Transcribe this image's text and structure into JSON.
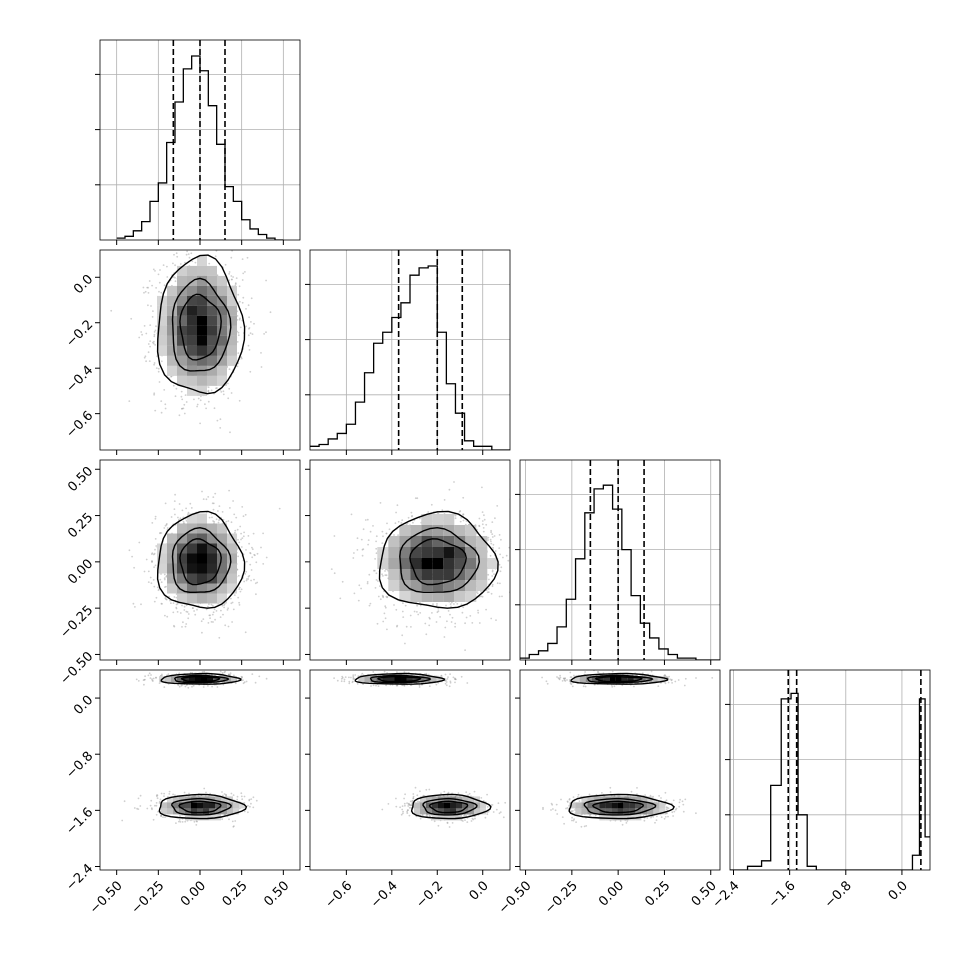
{
  "chart_data": {
    "type": "corner",
    "parameters": [
      {
        "range": [
          -0.6,
          0.6
        ],
        "ticks": [
          -0.5,
          -0.25,
          0.0,
          0.25,
          0.5
        ],
        "tick_labels": [
          "−0.50",
          "−0.25",
          "0.00",
          "0.25",
          "0.50"
        ],
        "quantiles": [
          -0.16,
          0.0,
          0.15
        ],
        "hist_edges_start": -0.5,
        "hist_bin_width": 0.05,
        "hist_heights": [
          0.01,
          0.02,
          0.05,
          0.1,
          0.21,
          0.31,
          0.53,
          0.75,
          0.93,
          1.0,
          0.92,
          0.73,
          0.52,
          0.29,
          0.21,
          0.11,
          0.06,
          0.03,
          0.01,
          0.0
        ]
      },
      {
        "range": [
          -0.76,
          0.12
        ],
        "ticks": [
          -0.6,
          -0.4,
          -0.2,
          0.0
        ],
        "tick_labels": [
          "−0.6",
          "−0.4",
          "−0.2",
          "0.0"
        ],
        "quantiles": [
          -0.37,
          -0.2,
          -0.09
        ],
        "hist_edges_start": -0.76,
        "hist_bin_width": 0.04,
        "hist_heights": [
          0.02,
          0.03,
          0.06,
          0.09,
          0.14,
          0.26,
          0.42,
          0.58,
          0.64,
          0.72,
          0.8,
          0.95,
          0.99,
          1.0,
          0.64,
          0.36,
          0.2,
          0.05,
          0.02,
          0.02,
          0.0,
          0.0
        ]
      },
      {
        "range": [
          -0.53,
          0.55
        ],
        "ticks": [
          -0.5,
          -0.25,
          0.0,
          0.25,
          0.5
        ],
        "tick_labels": [
          "−0.50",
          "−0.25",
          "0.00",
          "0.25",
          "0.50"
        ],
        "quantiles": [
          -0.15,
          0.0,
          0.14
        ],
        "hist_edges_start": -0.53,
        "hist_bin_width": 0.05,
        "hist_heights": [
          0.01,
          0.03,
          0.05,
          0.09,
          0.18,
          0.33,
          0.55,
          0.8,
          0.93,
          0.95,
          0.82,
          0.6,
          0.35,
          0.2,
          0.12,
          0.06,
          0.03,
          0.01,
          0.01,
          0.0,
          0.0,
          0.0
        ]
      },
      {
        "range": [
          -2.45,
          0.4
        ],
        "ticks": [
          -2.4,
          -1.6,
          -0.8,
          0.0
        ],
        "tick_labels": [
          "−2.4",
          "−1.6",
          "−0.8",
          "0.0"
        ],
        "quantiles": [
          -1.62,
          -1.5,
          0.27
        ],
        "hist_bins": [
          [
            -2.45,
            -2.2,
            0.0
          ],
          [
            -2.2,
            -2.0,
            0.02
          ],
          [
            -2.0,
            -1.87,
            0.05
          ],
          [
            -1.87,
            -1.72,
            0.46
          ],
          [
            -1.72,
            -1.58,
            0.93
          ],
          [
            -1.58,
            -1.48,
            0.96
          ],
          [
            -1.48,
            -1.35,
            0.3
          ],
          [
            -1.35,
            -1.22,
            0.02
          ],
          [
            -1.22,
            0.15,
            0.0
          ],
          [
            0.15,
            0.25,
            0.08
          ],
          [
            0.25,
            0.33,
            0.93
          ],
          [
            0.33,
            0.4,
            0.18
          ]
        ]
      }
    ],
    "pair_blobs": {
      "1-0": [
        {
          "cx": 0.0,
          "cy": -0.22,
          "sx": 0.12,
          "sy": 0.14
        }
      ],
      "2-0": [
        {
          "cx": 0.0,
          "cy": 0.0,
          "sx": 0.12,
          "sy": 0.12
        }
      ],
      "2-1": [
        {
          "cx": -0.2,
          "cy": 0.0,
          "sx": 0.12,
          "sy": 0.12
        }
      ],
      "3-0": [
        {
          "cx": 0.0,
          "cy": 0.27,
          "sx": 0.11,
          "sy": 0.035
        },
        {
          "cx": 0.0,
          "cy": -1.55,
          "sx": 0.12,
          "sy": 0.08
        }
      ],
      "3-1": [
        {
          "cx": -0.37,
          "cy": 0.27,
          "sx": 0.09,
          "sy": 0.035
        },
        {
          "cx": -0.15,
          "cy": -1.55,
          "sx": 0.08,
          "sy": 0.08
        }
      ],
      "3-2": [
        {
          "cx": 0.0,
          "cy": 0.27,
          "sx": 0.12,
          "sy": 0.035
        },
        {
          "cx": 0.0,
          "cy": -1.55,
          "sx": 0.13,
          "sy": 0.08
        }
      ]
    },
    "grid": true,
    "quantile_style": "dashed",
    "scatter_color": "#a0a0a0"
  }
}
